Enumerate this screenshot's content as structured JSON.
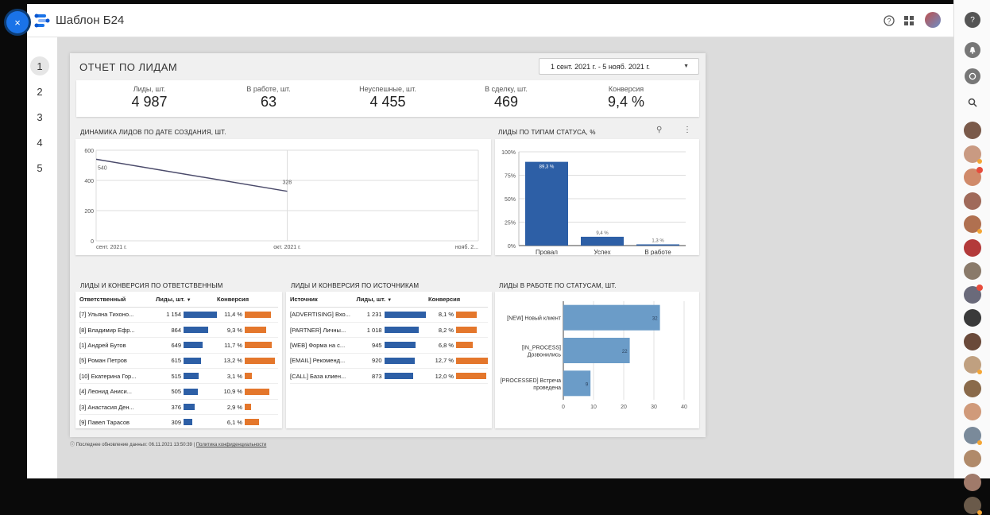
{
  "close_label": "×",
  "app": {
    "title": "Шаблон Б24"
  },
  "header_icons": [
    "help-icon",
    "apps-grid-icon",
    "user-avatar"
  ],
  "pages": [
    "1",
    "2",
    "3",
    "4",
    "5"
  ],
  "report": {
    "title": "ОТЧЕТ ПО ЛИДАМ",
    "date_range": "1 сент. 2021 г. - 5 нояб. 2021 г."
  },
  "kpis": [
    {
      "label": "Лиды, шт.",
      "value": "4 987"
    },
    {
      "label": "В работе, шт.",
      "value": "63"
    },
    {
      "label": "Неуспешные, шт.",
      "value": "4 455"
    },
    {
      "label": "В сделку, шт.",
      "value": "469"
    },
    {
      "label": "Конверсия",
      "value": "9,4 %"
    }
  ],
  "panels": {
    "dynamics_title": "ДИНАМИКА ЛИДОВ ПО ДАТЕ СОЗДАНИЯ, ШТ.",
    "status_types_title": "ЛИДЫ ПО ТИПАМ СТАТУСА, %",
    "responsible_title": "ЛИДЫ И КОНВЕРСИЯ ПО ОТВЕТСТВЕННЫМ",
    "sources_title": "ЛИДЫ И КОНВЕРСИЯ ПО ИСТОЧНИКАМ",
    "in_work_title": "ЛИДЫ В РАБОТЕ ПО СТАТУСАМ, ШТ."
  },
  "chart_data": [
    {
      "type": "line",
      "x": [
        "сент. 2021 г.",
        "окт. 2021 г."
      ],
      "x_ticks": [
        "сент. 2021 г.",
        "окт. 2021 г.",
        "нояб. 2..."
      ],
      "values": [
        540,
        328
      ],
      "data_labels": [
        "540",
        "328"
      ],
      "y_ticks": [
        "0",
        "200",
        "400",
        "600"
      ],
      "ylim": [
        0,
        600
      ],
      "color": "#4a4a6a"
    },
    {
      "type": "bar",
      "categories": [
        "Провал",
        "Успех",
        "В работе"
      ],
      "values": [
        89.3,
        9.4,
        1.3
      ],
      "data_labels": [
        "89,3 %",
        "9,4 %",
        "1,3 %"
      ],
      "y_ticks": [
        "0%",
        "25%",
        "50%",
        "75%",
        "100%"
      ],
      "ylim": [
        0,
        100
      ],
      "color": "#2d5fa6"
    },
    {
      "type": "table",
      "headers": [
        "Ответственный",
        "Лиды, шт.",
        "Конверсия"
      ],
      "sort_icon": "▼",
      "rows": [
        {
          "name": "[7] Ульяна Тихоно...",
          "leads_label": "1 154",
          "leads": 1154,
          "conv_label": "11,4 %",
          "conv": 11.4
        },
        {
          "name": "[8] Владимир Ефр...",
          "leads_label": "864",
          "leads": 864,
          "conv_label": "9,3 %",
          "conv": 9.3
        },
        {
          "name": "[1] Андрей Бутов",
          "leads_label": "649",
          "leads": 649,
          "conv_label": "11,7 %",
          "conv": 11.7
        },
        {
          "name": "[5] Роман Петров",
          "leads_label": "615",
          "leads": 615,
          "conv_label": "13,2 %",
          "conv": 13.2
        },
        {
          "name": "[10] Екатерина Гор...",
          "leads_label": "515",
          "leads": 515,
          "conv_label": "3,1 %",
          "conv": 3.1
        },
        {
          "name": "[4] Леонид Аниси...",
          "leads_label": "505",
          "leads": 505,
          "conv_label": "10,9 %",
          "conv": 10.9
        },
        {
          "name": "[3] Анастасия Ден...",
          "leads_label": "376",
          "leads": 376,
          "conv_label": "2,9 %",
          "conv": 2.9
        },
        {
          "name": "[9] Павел Тарасов",
          "leads_label": "309",
          "leads": 309,
          "conv_label": "6,1 %",
          "conv": 6.1
        }
      ]
    },
    {
      "type": "table",
      "headers": [
        "Источник",
        "Лиды, шт.",
        "Конверсия"
      ],
      "sort_icon": "▼",
      "rows": [
        {
          "name": "[ADVERTISING] Вхо...",
          "leads_label": "1 231",
          "leads": 1231,
          "conv_label": "8,1 %",
          "conv": 8.1
        },
        {
          "name": "[PARTNER] Личны...",
          "leads_label": "1 018",
          "leads": 1018,
          "conv_label": "8,2 %",
          "conv": 8.2
        },
        {
          "name": "[WEB] Форма на с...",
          "leads_label": "945",
          "leads": 945,
          "conv_label": "6,8 %",
          "conv": 6.8
        },
        {
          "name": "[EMAIL] Рекоменд...",
          "leads_label": "920",
          "leads": 920,
          "conv_label": "12,7 %",
          "conv": 12.7
        },
        {
          "name": "[CALL] База клиен...",
          "leads_label": "873",
          "leads": 873,
          "conv_label": "12,0 %",
          "conv": 12.0
        }
      ]
    },
    {
      "type": "bar",
      "orientation": "horizontal",
      "categories": [
        "[NEW] Новый клиент",
        "[IN_PROCESS] Дозвонились",
        "[PROCESSED] Встреча проведена"
      ],
      "category_lines": [
        [
          "[NEW] Новый клиент"
        ],
        [
          "[IN_PROCESS]",
          "Дозвонились"
        ],
        [
          "[PROCESSED] Встреча",
          "проведена"
        ]
      ],
      "values": [
        32,
        22,
        9
      ],
      "data_labels": [
        "32",
        "22",
        "9"
      ],
      "x_ticks": [
        "0",
        "10",
        "20",
        "30",
        "40"
      ],
      "xlim": [
        0,
        40
      ],
      "color": "#6b9cc8"
    }
  ],
  "footer": {
    "updated": "Последнее обновление данных: 06.11.2021 13:50:39",
    "separator": "|",
    "privacy": "Политика конфиденциальности"
  },
  "sidebar": {
    "icons": [
      "help-circle-icon",
      "bell-icon",
      "chat-icon",
      "search-icon"
    ],
    "colleague_colors": [
      "#7a5a4a",
      "#c99a82",
      "#d08a6a",
      "#a06a5a",
      "#b07050",
      "#b33a3a",
      "#8a7a6a",
      "#6a6a7a",
      "#3a3a3a",
      "#6a4a3a",
      "#c0a080",
      "#8a6a4a",
      "#d09a7a",
      "#7a8a9a",
      "#b08a6a",
      "#a07a6a",
      "#6a5a4a"
    ]
  }
}
